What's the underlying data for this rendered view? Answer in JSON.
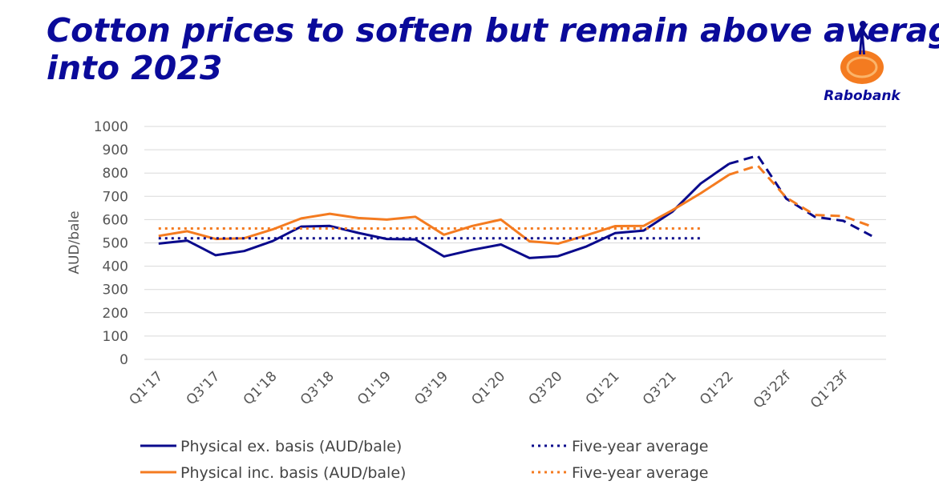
{
  "chart_data": {
    "type": "line",
    "title_lines": [
      "Cotton prices to soften but remain above average",
      "into 2023"
    ],
    "brand": "Rabobank",
    "ylabel": "AUD/bale",
    "categories": [
      "Q1'17",
      null,
      "Q3'17",
      null,
      "Q1'18",
      null,
      "Q3'18",
      null,
      "Q1'19",
      null,
      "Q3'19",
      null,
      "Q1'20",
      null,
      "Q3'20",
      null,
      "Q1'21",
      null,
      "Q3'21",
      null,
      "Q1'22",
      null,
      "Q3'22f",
      null,
      "Q1'23f",
      null
    ],
    "ylim": [
      0,
      1000
    ],
    "yticks": [
      0,
      100,
      200,
      300,
      400,
      500,
      600,
      700,
      800,
      900,
      1000
    ],
    "grid": true,
    "dash_from": 20,
    "series": [
      {
        "name": "Physical ex. basis (AUD/bale)",
        "color": "#0a0a8c",
        "style": "solid",
        "values": [
          497,
          510,
          447,
          465,
          508,
          570,
          573,
          543,
          517,
          515,
          442,
          470,
          493,
          435,
          443,
          485,
          542,
          553,
          633,
          755,
          840,
          875,
          690,
          612,
          595,
          530
        ]
      },
      {
        "name": "Physical inc. basis (AUD/bale)",
        "color": "#f47b20",
        "style": "solid",
        "values": [
          530,
          550,
          517,
          520,
          558,
          605,
          625,
          607,
          600,
          612,
          535,
          573,
          600,
          507,
          497,
          533,
          572,
          573,
          640,
          713,
          793,
          832,
          695,
          620,
          615,
          570
        ]
      },
      {
        "name": "Five-year average",
        "color": "#0a0a8c",
        "style": "dotted",
        "values": [
          520,
          520,
          520,
          520,
          520,
          520,
          520,
          520,
          520,
          520,
          520,
          520,
          520,
          520,
          520,
          520,
          520,
          520,
          520,
          520,
          null,
          null,
          null,
          null,
          null,
          null
        ]
      },
      {
        "name": "Five-year average",
        "color": "#f47b20",
        "style": "dotted",
        "values": [
          562,
          562,
          562,
          562,
          562,
          562,
          562,
          562,
          562,
          562,
          562,
          562,
          562,
          562,
          562,
          562,
          562,
          562,
          562,
          562,
          null,
          null,
          null,
          null,
          null,
          null
        ]
      }
    ]
  }
}
